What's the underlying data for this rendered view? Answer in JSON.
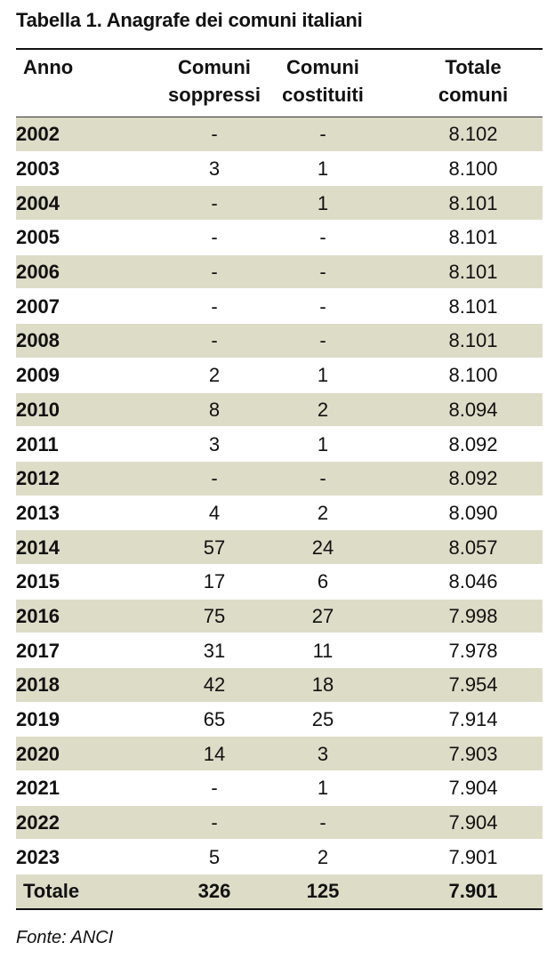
{
  "title": "Tabella 1. Anagrafe dei comuni italiani",
  "header": {
    "anno": "Anno",
    "soppressi": [
      "Comuni",
      "soppressi"
    ],
    "costituiti": [
      "Comuni",
      "costituiti"
    ],
    "totale": [
      "Totale",
      "comuni"
    ]
  },
  "rows": [
    {
      "anno": "2002",
      "soppressi": "-",
      "costituiti": "-",
      "totale": "8.102"
    },
    {
      "anno": "2003",
      "soppressi": "3",
      "costituiti": "1",
      "totale": "8.100"
    },
    {
      "anno": "2004",
      "soppressi": "-",
      "costituiti": "1",
      "totale": "8.101"
    },
    {
      "anno": "2005",
      "soppressi": "-",
      "costituiti": "-",
      "totale": "8.101"
    },
    {
      "anno": "2006",
      "soppressi": "-",
      "costituiti": "-",
      "totale": "8.101"
    },
    {
      "anno": "2007",
      "soppressi": "-",
      "costituiti": "-",
      "totale": "8.101"
    },
    {
      "anno": "2008",
      "soppressi": "-",
      "costituiti": "-",
      "totale": "8.101"
    },
    {
      "anno": "2009",
      "soppressi": "2",
      "costituiti": "1",
      "totale": "8.100"
    },
    {
      "anno": "2010",
      "soppressi": "8",
      "costituiti": "2",
      "totale": "8.094"
    },
    {
      "anno": "2011",
      "soppressi": "3",
      "costituiti": "1",
      "totale": "8.092"
    },
    {
      "anno": "2012",
      "soppressi": "-",
      "costituiti": "-",
      "totale": "8.092"
    },
    {
      "anno": "2013",
      "soppressi": "4",
      "costituiti": "2",
      "totale": "8.090"
    },
    {
      "anno": "2014",
      "soppressi": "57",
      "costituiti": "24",
      "totale": "8.057"
    },
    {
      "anno": "2015",
      "soppressi": "17",
      "costituiti": "6",
      "totale": "8.046"
    },
    {
      "anno": "2016",
      "soppressi": "75",
      "costituiti": "27",
      "totale": "7.998"
    },
    {
      "anno": "2017",
      "soppressi": "31",
      "costituiti": "11",
      "totale": "7.978"
    },
    {
      "anno": "2018",
      "soppressi": "42",
      "costituiti": "18",
      "totale": "7.954"
    },
    {
      "anno": "2019",
      "soppressi": "65",
      "costituiti": "25",
      "totale": "7.914"
    },
    {
      "anno": "2020",
      "soppressi": "14",
      "costituiti": "3",
      "totale": "7.903"
    },
    {
      "anno": "2021",
      "soppressi": "-",
      "costituiti": "1",
      "totale": "7.904"
    },
    {
      "anno": "2022",
      "soppressi": "-",
      "costituiti": "-",
      "totale": "7.904"
    },
    {
      "anno": "2023",
      "soppressi": "5",
      "costituiti": "2",
      "totale": "7.901"
    }
  ],
  "totals": {
    "anno": "Totale",
    "soppressi": "326",
    "costituiti": "125",
    "totale": "7.901"
  },
  "source": "Fonte: ANCI",
  "colors": {
    "row_shade": "#dddcc7",
    "text": "#111111",
    "rule": "#111111"
  }
}
